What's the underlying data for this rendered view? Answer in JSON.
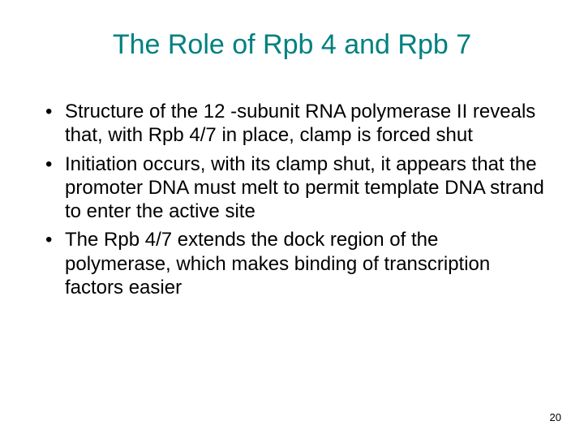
{
  "slide": {
    "title": "The Role of Rpb 4 and Rpb 7",
    "title_color": "#008080",
    "title_fontsize": 34,
    "bullets": [
      "Structure of the 12 -subunit RNA polymerase II reveals that, with Rpb 4/7 in place, clamp is forced shut",
      "Initiation occurs, with its clamp shut, it appears that the promoter DNA must melt to permit template DNA strand to enter the active site",
      "The Rpb 4/7 extends the dock region of the polymerase, which makes binding of transcription factors easier"
    ],
    "body_color": "#000000",
    "body_fontsize": 24,
    "body_lineheight": 1.22,
    "background_color": "#ffffff",
    "page_number": "20",
    "page_number_fontsize": 13,
    "page_number_color": "#000000"
  }
}
